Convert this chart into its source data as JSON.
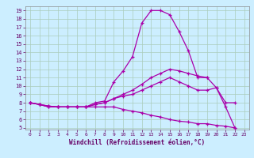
{
  "xlabel": "Windchill (Refroidissement éolien,°C)",
  "background_color": "#cceeff",
  "grid_color": "#aaccbb",
  "line_color": "#aa00aa",
  "xlim": [
    -0.5,
    23.5
  ],
  "ylim": [
    4.8,
    19.5
  ],
  "xticks": [
    0,
    1,
    2,
    3,
    4,
    5,
    6,
    7,
    8,
    9,
    10,
    11,
    12,
    13,
    14,
    15,
    16,
    17,
    18,
    19,
    20,
    21,
    22,
    23
  ],
  "yticks": [
    5,
    6,
    7,
    8,
    9,
    10,
    11,
    12,
    13,
    14,
    15,
    16,
    17,
    18,
    19
  ],
  "curves": [
    {
      "x": [
        0,
        1,
        2,
        3,
        4,
        5,
        6,
        7,
        8,
        9,
        10,
        11,
        12,
        13,
        14,
        15,
        16,
        17,
        18,
        19
      ],
      "y": [
        8.0,
        7.8,
        7.5,
        7.5,
        7.5,
        7.5,
        7.5,
        8.0,
        8.2,
        10.5,
        11.8,
        13.5,
        17.5,
        19.0,
        19.0,
        18.5,
        16.5,
        14.2,
        11.0,
        11.0
      ]
    },
    {
      "x": [
        0,
        1,
        2,
        3,
        4,
        5,
        6,
        7,
        8,
        9,
        10,
        11,
        12,
        13,
        14,
        15,
        16,
        17,
        18,
        19,
        20,
        21,
        22
      ],
      "y": [
        8.0,
        7.8,
        7.6,
        7.5,
        7.5,
        7.5,
        7.5,
        7.8,
        8.0,
        8.5,
        9.0,
        9.5,
        10.2,
        11.0,
        11.5,
        12.0,
        11.8,
        11.5,
        11.2,
        11.0,
        9.8,
        8.0,
        8.0
      ]
    },
    {
      "x": [
        0,
        1,
        2,
        3,
        4,
        5,
        6,
        7,
        8,
        9,
        10,
        11,
        12,
        13,
        14,
        15,
        16,
        17,
        18,
        19,
        20,
        21,
        22
      ],
      "y": [
        8.0,
        7.8,
        7.6,
        7.5,
        7.5,
        7.5,
        7.5,
        7.8,
        8.0,
        8.5,
        8.8,
        9.0,
        9.5,
        10.0,
        10.5,
        11.0,
        10.5,
        10.0,
        9.5,
        9.5,
        9.8,
        7.5,
        5.0
      ]
    },
    {
      "x": [
        0,
        1,
        2,
        3,
        4,
        5,
        6,
        7,
        8,
        9,
        10,
        11,
        12,
        13,
        14,
        15,
        16,
        17,
        18,
        19,
        20,
        21,
        22
      ],
      "y": [
        8.0,
        7.8,
        7.5,
        7.5,
        7.5,
        7.5,
        7.5,
        7.5,
        7.5,
        7.5,
        7.2,
        7.0,
        6.8,
        6.5,
        6.3,
        6.0,
        5.8,
        5.7,
        5.5,
        5.5,
        5.3,
        5.2,
        5.0
      ]
    }
  ]
}
